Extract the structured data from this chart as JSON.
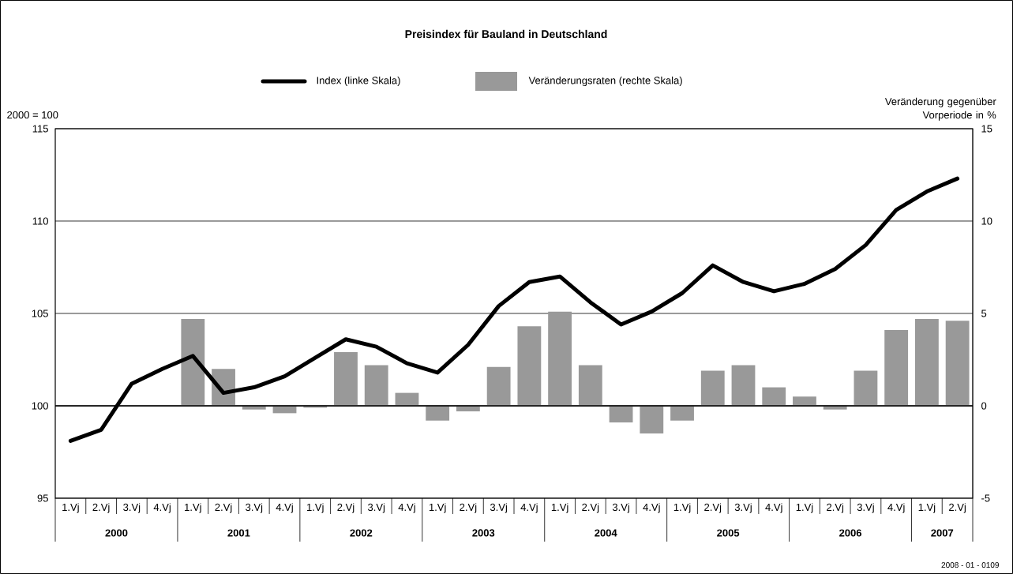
{
  "chart_data": {
    "type": "bar",
    "title": "Preisindex für Bauland in Deutschland",
    "ylabel": "2000 = 100",
    "y2label": "Veränderung gegenüber Vorperiode in %",
    "categories": [
      "1.Vj",
      "2.Vj",
      "3.Vj",
      "4.Vj",
      "1.Vj",
      "2.Vj",
      "3.Vj",
      "4.Vj",
      "1.Vj",
      "2.Vj",
      "3.Vj",
      "4.Vj",
      "1.Vj",
      "2.Vj",
      "3.Vj",
      "4.Vj",
      "1.Vj",
      "2.Vj",
      "3.Vj",
      "4.Vj",
      "1.Vj",
      "2.Vj",
      "3.Vj",
      "4.Vj",
      "1.Vj",
      "2.Vj",
      "3.Vj",
      "4.Vj",
      "1.Vj",
      "2.Vj"
    ],
    "series": [
      {
        "name": "Index (linke Skala)",
        "type": "line",
        "color": "#000000",
        "values": [
          98.1,
          98.7,
          101.2,
          102.0,
          102.7,
          100.7,
          101.0,
          101.6,
          102.6,
          103.6,
          103.2,
          102.3,
          101.8,
          103.3,
          105.4,
          106.7,
          107.0,
          105.6,
          104.4,
          105.1,
          106.1,
          107.6,
          106.7,
          106.2,
          106.6,
          107.4,
          108.7,
          110.6,
          111.6,
          112.3
        ]
      },
      {
        "name": "Veränderungsraten (rechte Skala)",
        "axis": "y2",
        "color": "#999999",
        "values": [
          null,
          null,
          null,
          null,
          4.7,
          2.0,
          -0.2,
          -0.4,
          -0.1,
          2.9,
          2.2,
          0.7,
          -0.8,
          -0.3,
          2.1,
          4.3,
          5.1,
          2.2,
          -0.9,
          -1.5,
          -0.8,
          1.9,
          2.2,
          1.0,
          0.5,
          -0.2,
          1.9,
          4.1,
          4.7,
          4.6
        ]
      }
    ],
    "ylim": [
      95,
      115
    ],
    "yticks": [
      95,
      100,
      105,
      110,
      115
    ],
    "y2lim": [
      -5,
      15
    ],
    "y2ticks": [
      -5,
      0,
      5,
      10,
      15
    ],
    "ref_lines": [
      {
        "axis": "y2",
        "value": 0
      }
    ],
    "grid": "y",
    "legend": "top",
    "annotations": [
      "2000",
      "2001",
      "2002",
      "2003",
      "2004",
      "2005",
      "2006",
      "2007",
      "2008 - 01 - 0109"
    ]
  }
}
